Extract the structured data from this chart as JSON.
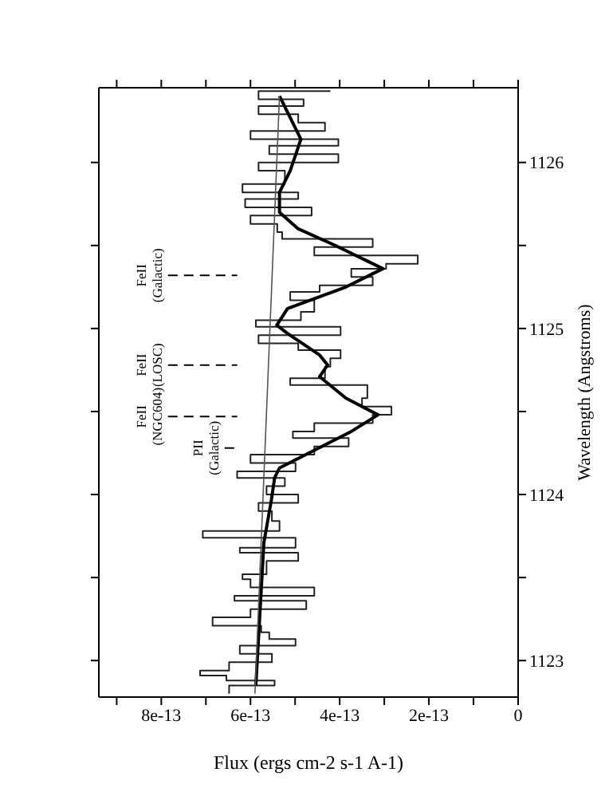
{
  "chart_data": {
    "type": "line",
    "xlabel": "Flux (ergs cm-2 s-1 A-1)",
    "ylabel": "Wavelength (Angstroms)",
    "xlim": [
      9.4e-13,
      0
    ],
    "ylim": [
      1122.78,
      1126.45
    ],
    "yticks": [
      1123,
      {
        "value": 1123.5,
        "label": null
      },
      1124,
      {
        "value": 1124.5,
        "label": null
      },
      1125,
      {
        "value": 1125.5,
        "label": null
      },
      1126
    ],
    "xticks": [
      0,
      {
        "value": 1e-13,
        "label": null
      },
      2e-13,
      {
        "value": 3e-13,
        "label": null
      },
      4e-13,
      {
        "value": 5e-13,
        "label": null
      },
      6e-13,
      {
        "value": 7e-13,
        "label": null
      },
      8e-13,
      {
        "value": 9e-13,
        "label": null
      }
    ],
    "grid": false,
    "legend": false,
    "marker": "none",
    "series": [
      {
        "type": "step",
        "color": "#222222",
        "values": [
          1122.8,
          1122.85,
          1122.88,
          1122.91,
          1122.94,
          1122.99,
          1123.04,
          1123.09,
          1123.13,
          1123.17,
          1123.21,
          1123.26,
          1123.31,
          1123.36,
          1123.39,
          1123.44,
          1123.49,
          1123.52,
          1123.6,
          1123.65,
          1123.68,
          1123.74,
          1123.78,
          1123.84,
          1123.9,
          1123.95,
          1124,
          1124.05,
          1124.1,
          1124.14,
          1124.19,
          1124.24,
          1124.29,
          1124.34,
          1124.38,
          1124.43,
          1124.48,
          1124.53,
          1124.58,
          1124.66,
          1124.7,
          1124.77,
          1124.82,
          1124.87,
          1124.91,
          1124.96,
          1125.01,
          1125.05,
          1125.1,
          1125.17,
          1125.22,
          1125.26,
          1125.31,
          1125.36,
          1125.39,
          1125.44,
          1125.49,
          1125.54,
          1125.58,
          1125.63,
          1125.68,
          1125.73,
          1125.78,
          1125.82,
          1125.87,
          1125.95,
          1126,
          1126.05,
          1126.1,
          1126.14,
          1126.19,
          1126.24,
          1126.29,
          1126.34,
          1126.38,
          1126.43
        ],
        "x": [
          6.48e-13,
          5.46e-13,
          6.54e-13,
          7.13e-13,
          6.48e-13,
          5.52e-13,
          6.24e-13,
          4.99e-13,
          5.58e-13,
          5.76e-13,
          6.85e-13,
          6e-13,
          4.75e-13,
          6.36e-13,
          4.57e-13,
          6e-13,
          6.18e-13,
          5.64e-13,
          4.93e-13,
          6.24e-13,
          4.99e-13,
          7.07e-13,
          5.35e-13,
          5.52e-13,
          5.82e-13,
          4.93e-13,
          5.64e-13,
          5.23e-13,
          6.3e-13,
          4.99e-13,
          6e-13,
          4.57e-13,
          3.8e-13,
          5.05e-13,
          4.57e-13,
          3.26e-13,
          2.84e-13,
          3.5e-13,
          3.38e-13,
          5.11e-13,
          4.33e-13,
          4.21e-13,
          3.98e-13,
          4.93e-13,
          5.82e-13,
          3.98e-13,
          5.88e-13,
          4.87e-13,
          4.57e-13,
          5.11e-13,
          4.45e-13,
          3.26e-13,
          3.74e-13,
          2.96e-13,
          2.25e-13,
          4.57e-13,
          3.26e-13,
          5.29e-13,
          5.4e-13,
          6e-13,
          4.63e-13,
          6.12e-13,
          4.93e-13,
          6.18e-13,
          5.23e-13,
          5.82e-13,
          4.03e-13,
          5.58e-13,
          4.03e-13,
          6e-13,
          4.33e-13,
          4.93e-13,
          5.82e-13,
          4.81e-13,
          5.82e-13,
          4.21e-13
        ]
      },
      {
        "type": "line",
        "color": "#000000",
        "values": [
          1122.85,
          1123.71,
          1123.97,
          1124.1,
          1124.16,
          1124.25,
          1124.38,
          1124.48,
          1124.58,
          1124.71,
          1124.78,
          1124.84,
          1124.97,
          1125.02,
          1125.12,
          1125.25,
          1125.36,
          1125.5,
          1125.6,
          1125.7,
          1125.82,
          1125.95,
          1126.14,
          1126.4
        ],
        "x": [
          5.88e-13,
          5.7e-13,
          5.53e-13,
          5.46e-13,
          5.35e-13,
          4.69e-13,
          3.74e-13,
          3.14e-13,
          3.86e-13,
          4.45e-13,
          4.27e-13,
          4.45e-13,
          5.17e-13,
          5.41e-13,
          5.17e-13,
          3.86e-13,
          3.03e-13,
          4.1e-13,
          4.93e-13,
          5.35e-13,
          5.35e-13,
          5.11e-13,
          4.87e-13,
          5.35e-13
        ]
      },
      {
        "type": "line",
        "color": "#555555",
        "values": [
          1122.8,
          1126.4
        ],
        "x": [
          5.9e-13,
          5.35e-13
        ]
      }
    ],
    "ref_lines": [
      {
        "axis": "y",
        "value": 1124.47,
        "label": "FeII (NGC604)",
        "line_style": "dashed",
        "color": "#000000"
      },
      {
        "axis": "y",
        "value": 1124.28,
        "label": "PII (Galactic)",
        "line_style": "dashed",
        "color": "#000000"
      },
      {
        "axis": "y",
        "value": 1124.78,
        "label": "FeII (LOSC)",
        "line_style": "dashed",
        "color": "#000000"
      },
      {
        "axis": "y",
        "value": 1125.32,
        "label": "FeII (Galactic)",
        "line_style": "dashed",
        "color": "#000000"
      }
    ]
  }
}
